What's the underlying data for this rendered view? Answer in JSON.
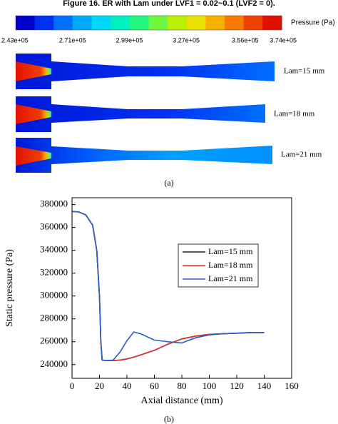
{
  "caption": "Figure 16. ER with Lam under LVF1 = 0.02~0.1 (LVF2 = 0).",
  "colorbar": {
    "label": "Pressure (Pa)",
    "colors": [
      "#0000c8",
      "#0030f0",
      "#0070ff",
      "#00a8ff",
      "#00d8f8",
      "#00f0c0",
      "#20f880",
      "#70f840",
      "#b8f000",
      "#e8e000",
      "#f8b000",
      "#f87800",
      "#f04000",
      "#e01000"
    ],
    "ticks": [
      "2.43e+05",
      "2.71e+05",
      "2.99e+05",
      "3.27e+05",
      "3.56e+05",
      "3.74e+05"
    ]
  },
  "contours": [
    "Lam=15 mm",
    "Lam=18 mm",
    "Lam=21 mm"
  ],
  "panel_a": "(a)",
  "panel_b": "(b)",
  "chart_data": {
    "type": "line",
    "xlabel": "Axial distance (mm)",
    "ylabel": "Static pressure (Pa)",
    "x": [
      0,
      5,
      10,
      15,
      18,
      20,
      21,
      22,
      25,
      30,
      35,
      40,
      45,
      50,
      60,
      70,
      80,
      90,
      100,
      110,
      120,
      130,
      140
    ],
    "series": [
      {
        "name": "Lam=15 mm",
        "color": "#222222",
        "values": [
          374000,
          373500,
          371000,
          362000,
          340000,
          300000,
          260000,
          244000,
          243500,
          243500,
          244000,
          245000,
          246500,
          248500,
          252500,
          258000,
          262500,
          265000,
          266500,
          267000,
          267500,
          268000,
          268000
        ]
      },
      {
        "name": "Lam=18 mm",
        "color": "#e03030",
        "values": [
          374000,
          373500,
          371000,
          362000,
          340000,
          300000,
          260000,
          244000,
          243500,
          243500,
          244000,
          245000,
          246500,
          248500,
          252500,
          258000,
          262500,
          265000,
          266500,
          267000,
          267500,
          268000,
          268000
        ]
      },
      {
        "name": "Lam=21 mm",
        "color": "#2060d0",
        "values": [
          374000,
          373500,
          371000,
          362000,
          340000,
          300000,
          260000,
          244000,
          243500,
          244000,
          251000,
          261000,
          268500,
          267000,
          261500,
          260000,
          259000,
          263500,
          266000,
          267000,
          267500,
          268000,
          268000
        ]
      }
    ],
    "xlim": [
      0,
      160
    ],
    "xticks": [
      0,
      20,
      40,
      60,
      80,
      100,
      120,
      140,
      160
    ],
    "ylim": [
      228000,
      386000
    ],
    "yticks": [
      240000,
      260000,
      280000,
      300000,
      320000,
      340000,
      360000,
      380000
    ],
    "legend": "upper-right"
  }
}
